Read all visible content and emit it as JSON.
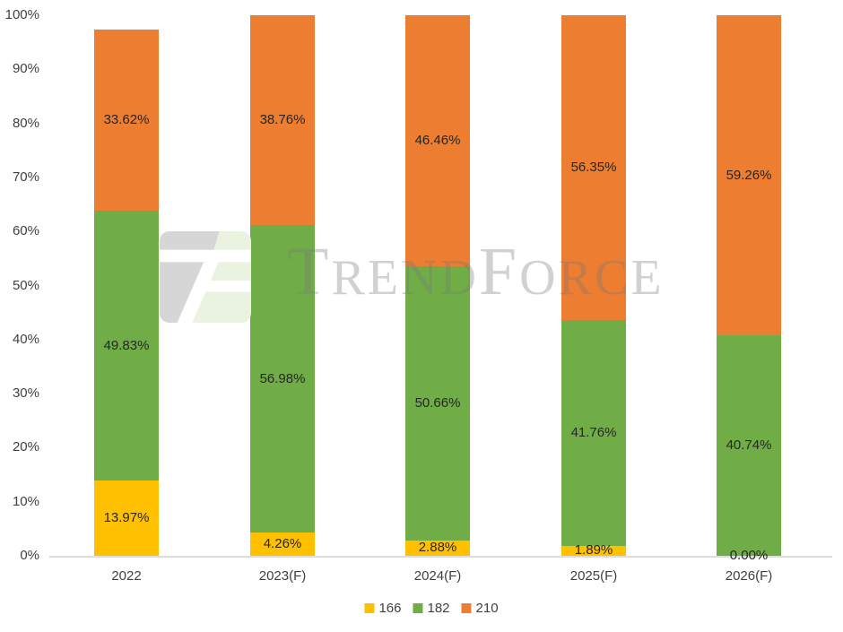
{
  "watermark": {
    "parts": [
      "T",
      "REND",
      "F",
      "ORCE"
    ]
  },
  "chart_data": {
    "type": "bar",
    "variant": "stacked-percent",
    "title": "",
    "xlabel": "",
    "ylabel": "",
    "categories": [
      "2022",
      "2023(F)",
      "2024(F)",
      "2025(F)",
      "2026(F)"
    ],
    "series": [
      {
        "name": "166",
        "color": "#FFC000",
        "values": [
          13.97,
          4.26,
          2.88,
          1.89,
          0.0
        ],
        "labels": [
          "13.97%",
          "4.26%",
          "2.88%",
          "1.89%",
          "0.00%"
        ]
      },
      {
        "name": "182",
        "color": "#70AD47",
        "values": [
          49.83,
          56.98,
          50.66,
          41.76,
          40.74
        ],
        "labels": [
          "49.83%",
          "56.98%",
          "50.66%",
          "41.76%",
          "40.74%"
        ]
      },
      {
        "name": "210",
        "color": "#ED7D31",
        "values": [
          33.62,
          38.76,
          46.46,
          56.35,
          59.26
        ],
        "labels": [
          "33.62%",
          "38.76%",
          "46.46%",
          "56.35%",
          "59.26%"
        ]
      }
    ],
    "ylim": [
      0,
      100
    ],
    "ytick_labels": [
      "0%",
      "10%",
      "20%",
      "30%",
      "40%",
      "50%",
      "60%",
      "70%",
      "80%",
      "90%",
      "100%"
    ],
    "grid": false,
    "legend_position": "bottom",
    "colors": {
      "axis_line": "#dcdcdc",
      "tick_text": "#404040",
      "data_label_text": "#262626"
    }
  }
}
